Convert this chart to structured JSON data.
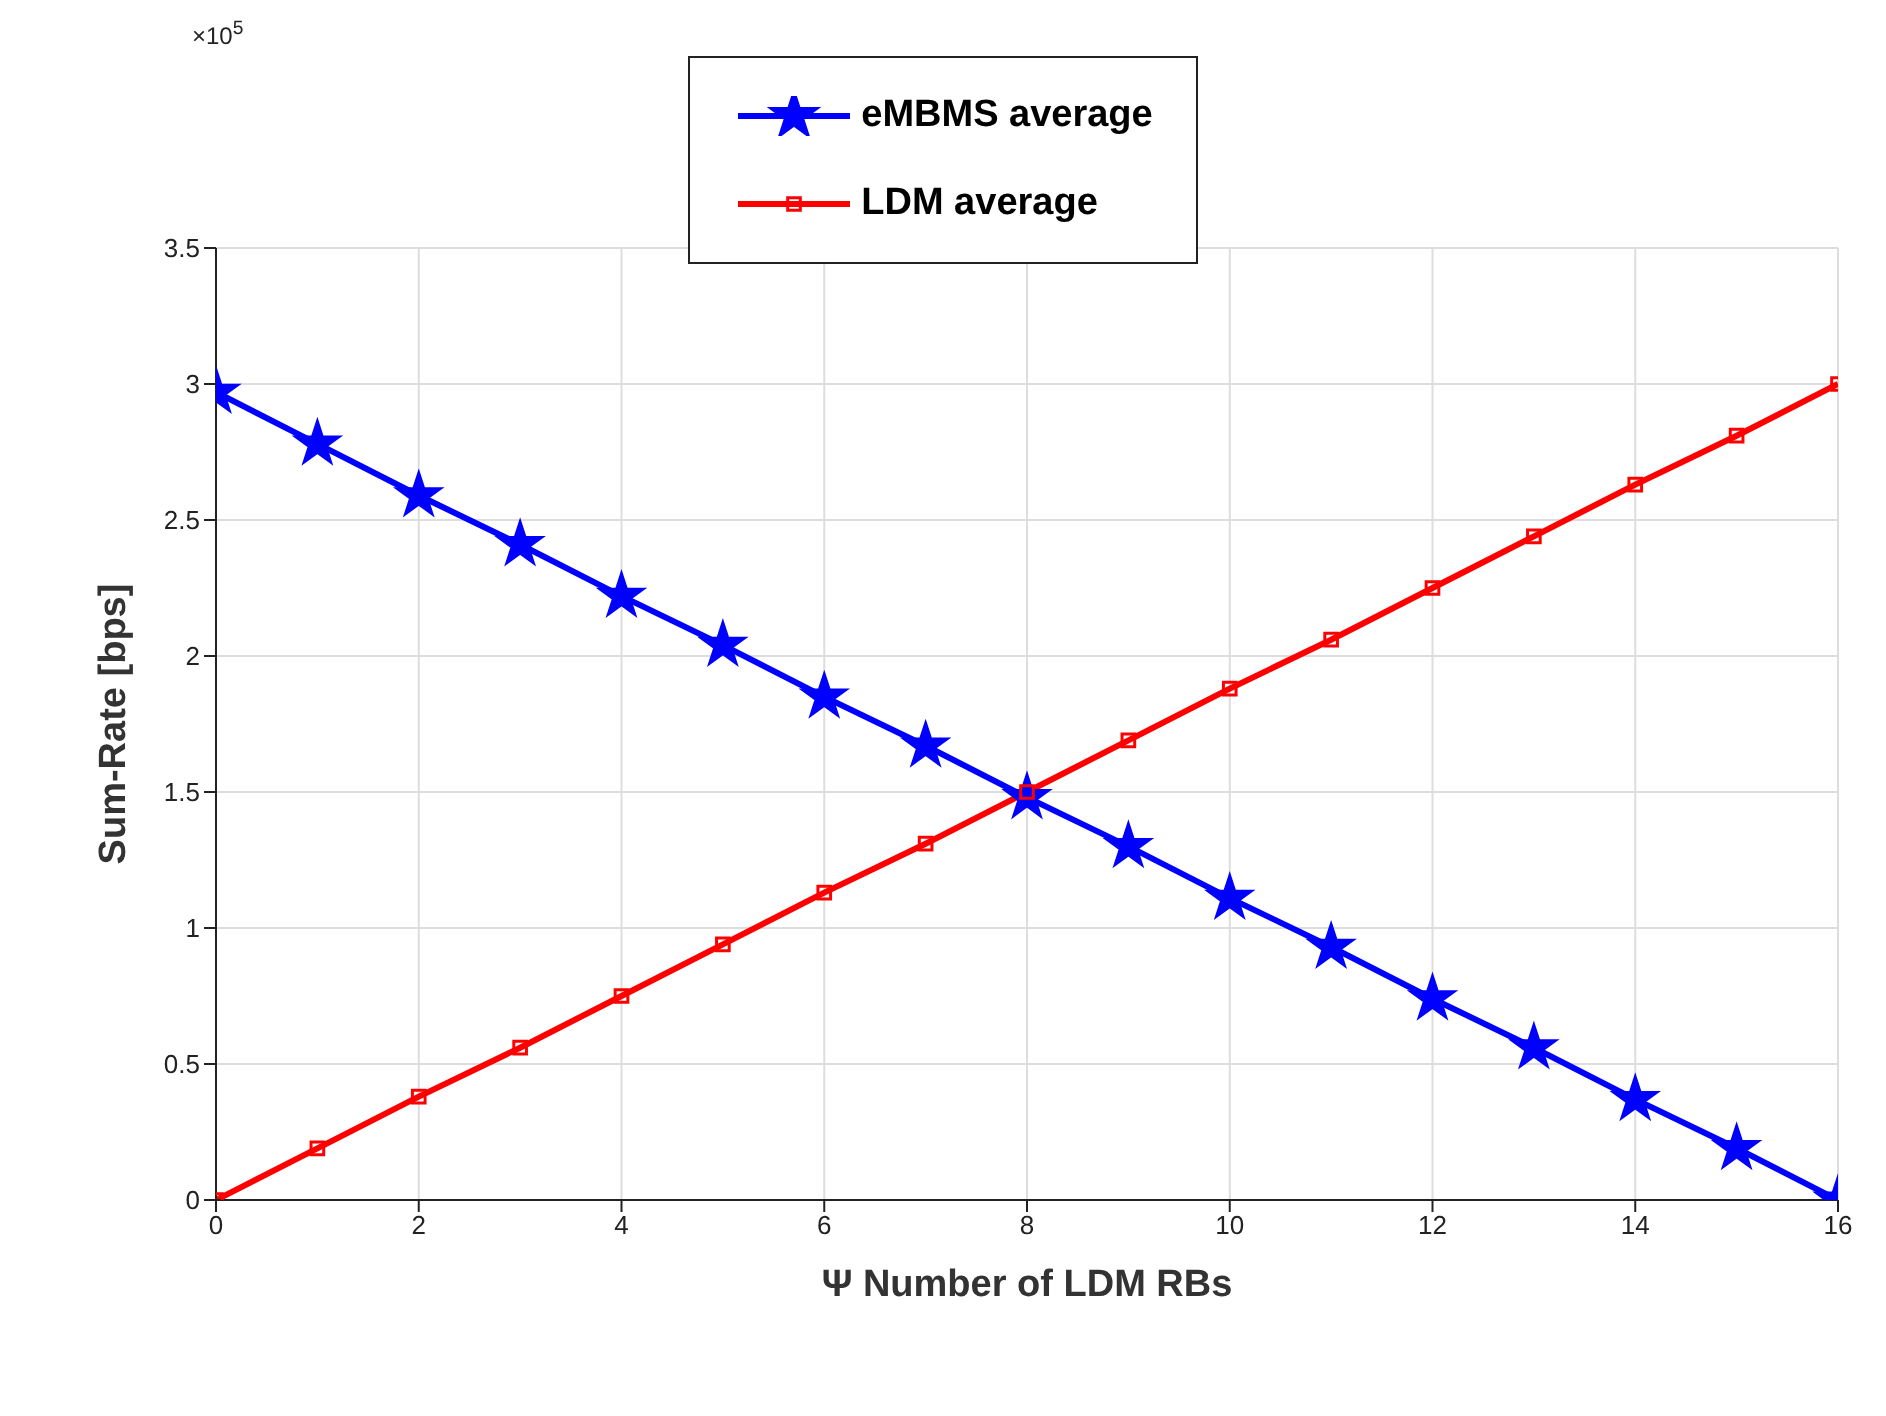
{
  "chart_data": {
    "type": "line",
    "xlabel": "Ψ Number of LDM RBs",
    "ylabel": "Sum-Rate [bps]",
    "x": [
      0,
      1,
      2,
      3,
      4,
      5,
      6,
      7,
      8,
      9,
      10,
      11,
      12,
      13,
      14,
      15,
      16
    ],
    "series": [
      {
        "name": "eMBMS average",
        "color": "#0000ff",
        "marker": "star",
        "values": [
          2.97,
          2.78,
          2.59,
          2.41,
          2.22,
          2.04,
          1.85,
          1.67,
          1.48,
          1.3,
          1.11,
          0.93,
          0.74,
          0.56,
          0.37,
          0.19,
          0
        ]
      },
      {
        "name": "LDM average",
        "color": "#ff0000",
        "marker": "square",
        "values": [
          0,
          0.19,
          0.38,
          0.56,
          0.75,
          0.94,
          1.13,
          1.31,
          1.5,
          1.69,
          1.88,
          2.06,
          2.25,
          2.44,
          2.63,
          2.81,
          3.0
        ]
      }
    ],
    "xlim": [
      0,
      16
    ],
    "xticks": [
      0,
      2,
      4,
      6,
      8,
      10,
      12,
      14,
      16
    ],
    "ylim": [
      0,
      3.5
    ],
    "yticks": [
      0,
      0.5,
      1,
      1.5,
      2,
      2.5,
      3,
      3.5
    ],
    "annotations": [
      "×10$^{5}$"
    ],
    "grid": true,
    "legend": "top",
    "line_style": "solid"
  }
}
